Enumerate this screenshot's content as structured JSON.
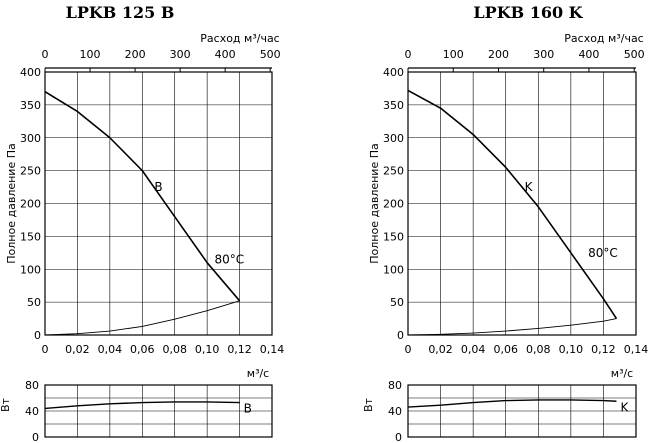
{
  "chart_data": [
    {
      "type": "line",
      "title": "LPKB 125 B",
      "top_axis_label": "Расход м³/час",
      "top_ticks": [
        "0",
        "100",
        "200",
        "300",
        "400",
        "500"
      ],
      "xlabel": "м³/с",
      "ylabel": "Полное давление Па",
      "x_ticks": [
        "0",
        "0,02",
        "0,04",
        "0,06",
        "0,08",
        "0,10",
        "0,12",
        "0,14"
      ],
      "y_ticks": [
        "0",
        "50",
        "100",
        "150",
        "200",
        "250",
        "300",
        "350",
        "400"
      ],
      "xlim": [
        0,
        0.14
      ],
      "ylim": [
        0,
        400
      ],
      "grid": true,
      "series": [
        {
          "name": "B",
          "annotation": "80°C",
          "x": [
            0,
            0.02,
            0.04,
            0.06,
            0.08,
            0.1,
            0.12
          ],
          "y": [
            370,
            340,
            300,
            250,
            180,
            110,
            52
          ]
        },
        {
          "x": [
            0,
            0.02,
            0.04,
            0.06,
            0.08,
            0.1,
            0.12
          ],
          "y": [
            0,
            2,
            6,
            13,
            24,
            37,
            52
          ]
        }
      ],
      "power": {
        "ylabel": "Вт",
        "y_ticks": [
          "0",
          "40",
          "80"
        ],
        "ylim": [
          0,
          80
        ],
        "series_label": "B",
        "x": [
          0,
          0.02,
          0.04,
          0.06,
          0.08,
          0.1,
          0.12
        ],
        "y": [
          44,
          48,
          51,
          53,
          54,
          54,
          53
        ]
      }
    },
    {
      "type": "line",
      "title": "LPKB 160 K",
      "top_axis_label": "Расход м³/час",
      "top_ticks": [
        "0",
        "100",
        "200",
        "300",
        "400",
        "500"
      ],
      "xlabel": "м³/с",
      "ylabel": "Полное давление Па",
      "x_ticks": [
        "0",
        "0,02",
        "0,04",
        "0,06",
        "0,08",
        "0,10",
        "0,12",
        "0,14"
      ],
      "y_ticks": [
        "0",
        "50",
        "100",
        "150",
        "200",
        "250",
        "300",
        "350",
        "400"
      ],
      "xlim": [
        0,
        0.14
      ],
      "ylim": [
        0,
        400
      ],
      "grid": true,
      "series": [
        {
          "name": "K",
          "annotation": "80°C",
          "x": [
            0,
            0.02,
            0.04,
            0.06,
            0.08,
            0.1,
            0.12,
            0.128
          ],
          "y": [
            372,
            345,
            305,
            255,
            195,
            125,
            55,
            25
          ]
        },
        {
          "x": [
            0,
            0.02,
            0.04,
            0.06,
            0.08,
            0.1,
            0.12,
            0.128
          ],
          "y": [
            0,
            1,
            3,
            6,
            10,
            15,
            21,
            25
          ]
        }
      ],
      "power": {
        "ylabel": "Вт",
        "y_ticks": [
          "0",
          "40",
          "80"
        ],
        "ylim": [
          0,
          80
        ],
        "series_label": "K",
        "x": [
          0,
          0.02,
          0.04,
          0.06,
          0.08,
          0.1,
          0.12,
          0.128
        ],
        "y": [
          46,
          49,
          53,
          56,
          57,
          57,
          56,
          55
        ]
      }
    }
  ]
}
